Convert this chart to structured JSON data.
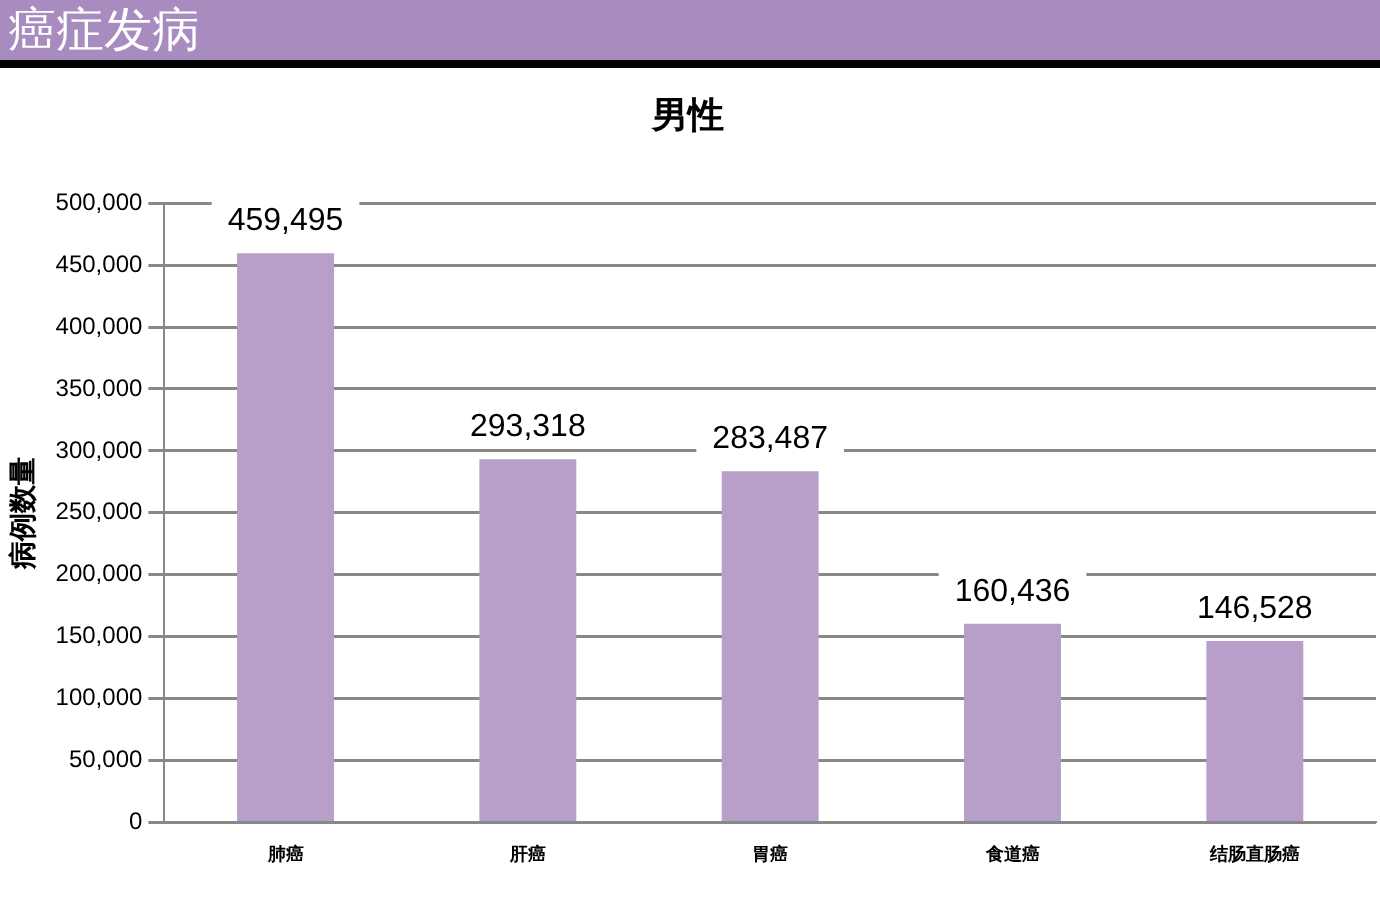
{
  "chart_data": {
    "type": "bar",
    "title": "癌症发病",
    "subtitle": "男性",
    "ylabel": "病例数量",
    "categories": [
      "肺癌",
      "肝癌",
      "胃癌",
      "食道癌",
      "结肠直肠癌"
    ],
    "values": [
      459495,
      293318,
      283487,
      160436,
      146528
    ],
    "color": "#b89fca",
    "value_labels": [
      "459,495",
      "293,318",
      "283,487",
      "160,436",
      "146,528"
    ],
    "ylim": [
      0,
      500000
    ],
    "yticks": [
      0,
      {
        "value": 50000,
        "label": "50,000"
      },
      {
        "value": 100000,
        "label": "100,000"
      },
      {
        "value": 150000,
        "label": "150,000"
      },
      {
        "value": 200000,
        "label": "200,000"
      },
      {
        "value": 250000,
        "label": "250,000"
      },
      {
        "value": 300000,
        "label": "300,000"
      },
      {
        "value": 350000,
        "label": "350,000"
      },
      {
        "value": 400000,
        "label": "400,000"
      },
      {
        "value": 450000,
        "label": "450,000"
      },
      {
        "value": 500000,
        "label": "500,000"
      }
    ],
    "grid": "y",
    "legend": false
  }
}
